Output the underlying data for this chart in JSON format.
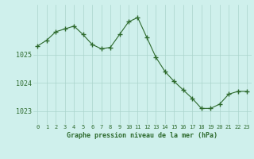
{
  "x": [
    0,
    1,
    2,
    3,
    4,
    5,
    6,
    7,
    8,
    9,
    10,
    11,
    12,
    13,
    14,
    15,
    16,
    17,
    18,
    19,
    20,
    21,
    22,
    23
  ],
  "y": [
    1025.3,
    1025.5,
    1025.8,
    1025.9,
    1026.0,
    1025.7,
    1025.35,
    1025.2,
    1025.25,
    1025.7,
    1026.15,
    1026.3,
    1025.6,
    1024.9,
    1024.4,
    1024.05,
    1023.75,
    1023.45,
    1023.1,
    1023.1,
    1023.25,
    1023.6,
    1023.7,
    1023.7
  ],
  "line_color": "#2d6a2d",
  "marker": "+",
  "bg_color": "#cff0ec",
  "grid_color": "#aad4cc",
  "xlabel": "Graphe pression niveau de la mer (hPa)",
  "xlabel_color": "#2d6a2d",
  "tick_color": "#2d6a2d",
  "yticks": [
    1023,
    1024,
    1025
  ],
  "ylim": [
    1022.55,
    1026.75
  ],
  "xlim": [
    -0.5,
    23.5
  ],
  "xticks": [
    0,
    1,
    2,
    3,
    4,
    5,
    6,
    7,
    8,
    9,
    10,
    11,
    12,
    13,
    14,
    15,
    16,
    17,
    18,
    19,
    20,
    21,
    22,
    23
  ]
}
